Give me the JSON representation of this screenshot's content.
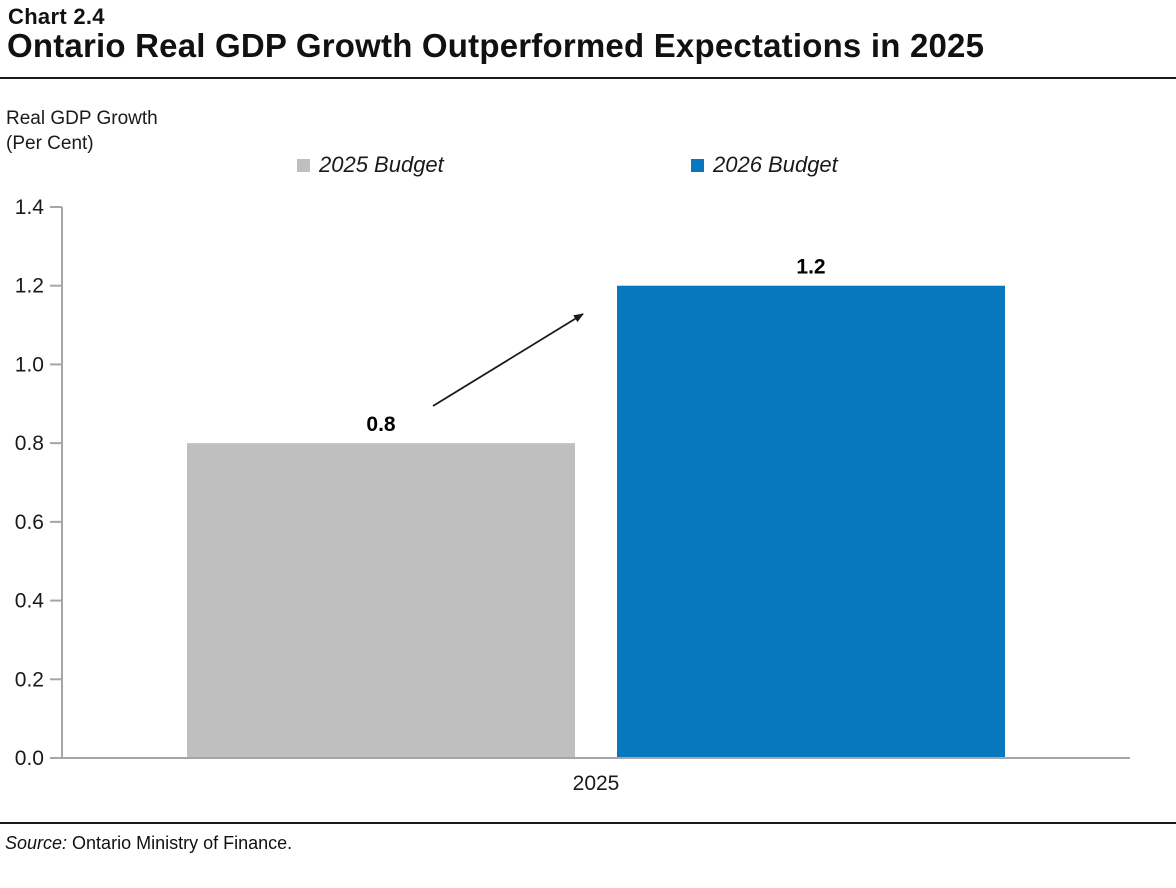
{
  "header": {
    "chart_number": "Chart 2.4",
    "title": "Ontario Real GDP Growth Outperformed Expectations in 2025"
  },
  "axis_label": {
    "line1": "Real GDP Growth",
    "line2": "(Per Cent)"
  },
  "footer": {
    "source_prefix": "Source:",
    "source_text": "Ontario Ministry of Finance."
  },
  "chart_data": {
    "type": "bar",
    "title": "Ontario Real GDP Growth Outperformed Expectations in 2025",
    "categories": [
      "2025"
    ],
    "series": [
      {
        "name": "2025 Budget",
        "values": [
          0.8
        ],
        "color": "#bfbfbf"
      },
      {
        "name": "2026 Budget",
        "values": [
          1.2
        ],
        "color": "#0878be"
      }
    ],
    "data_labels": [
      "0.8",
      "1.2"
    ],
    "xlabel": "",
    "ylabel": "Real GDP Growth (Per Cent)",
    "ylim": [
      0.0,
      1.4
    ],
    "ytick_step": 0.2,
    "yticks": [
      "0.0",
      "0.2",
      "0.4",
      "0.6",
      "0.8",
      "1.0",
      "1.2",
      "1.4"
    ],
    "grid": false,
    "legend_position": "top",
    "axis_color": "#a6a6a6",
    "annotation": {
      "type": "arrow",
      "color": "#1a1a1a",
      "description": "upward arrow from 2025 Budget bar (0.8) to 2026 Budget bar (1.2) indicating upward revision"
    }
  }
}
